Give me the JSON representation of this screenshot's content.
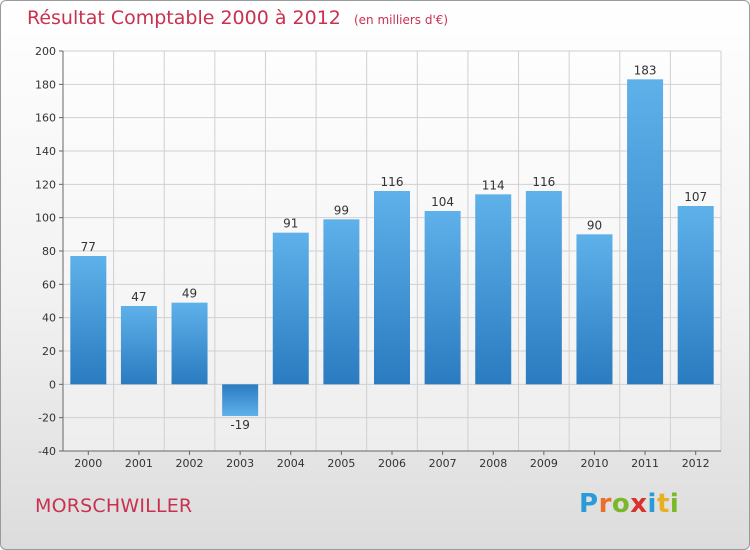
{
  "title": "Résultat Comptable 2000 à 2012",
  "unit_label": "(en milliers d'€)",
  "city": "MORSCHWILLER",
  "logo": {
    "letters": [
      "P",
      "r",
      "o",
      "x",
      "i",
      "t",
      "i"
    ],
    "colors": [
      "#2a9ad8",
      "#e8702a",
      "#7ab829",
      "#d8322a",
      "#2a9ad8",
      "#e8b020",
      "#7ab829"
    ]
  },
  "colors": {
    "bar_top": "#5fb1ea",
    "bar_bottom": "#2a7bc0",
    "title": "#c8314f",
    "grid": "#d0d0d0"
  },
  "chart_data": {
    "type": "bar",
    "title": "Résultat Comptable 2000 à 2012",
    "xlabel": "",
    "ylabel": "",
    "ylim": [
      -40,
      200
    ],
    "yticks": [
      -40,
      -20,
      0,
      20,
      40,
      60,
      80,
      100,
      120,
      140,
      160,
      180,
      200
    ],
    "grid": true,
    "categories": [
      "2000",
      "2001",
      "2002",
      "2003",
      "2004",
      "2005",
      "2006",
      "2007",
      "2008",
      "2009",
      "2010",
      "2011",
      "2012"
    ],
    "values": [
      77,
      47,
      49,
      -19,
      91,
      99,
      116,
      104,
      114,
      116,
      90,
      183,
      107
    ],
    "value_labels": [
      "77",
      "47",
      "49",
      "-19",
      "91",
      "99",
      "116",
      "104",
      "114",
      "116",
      "90",
      "183",
      "107"
    ]
  }
}
